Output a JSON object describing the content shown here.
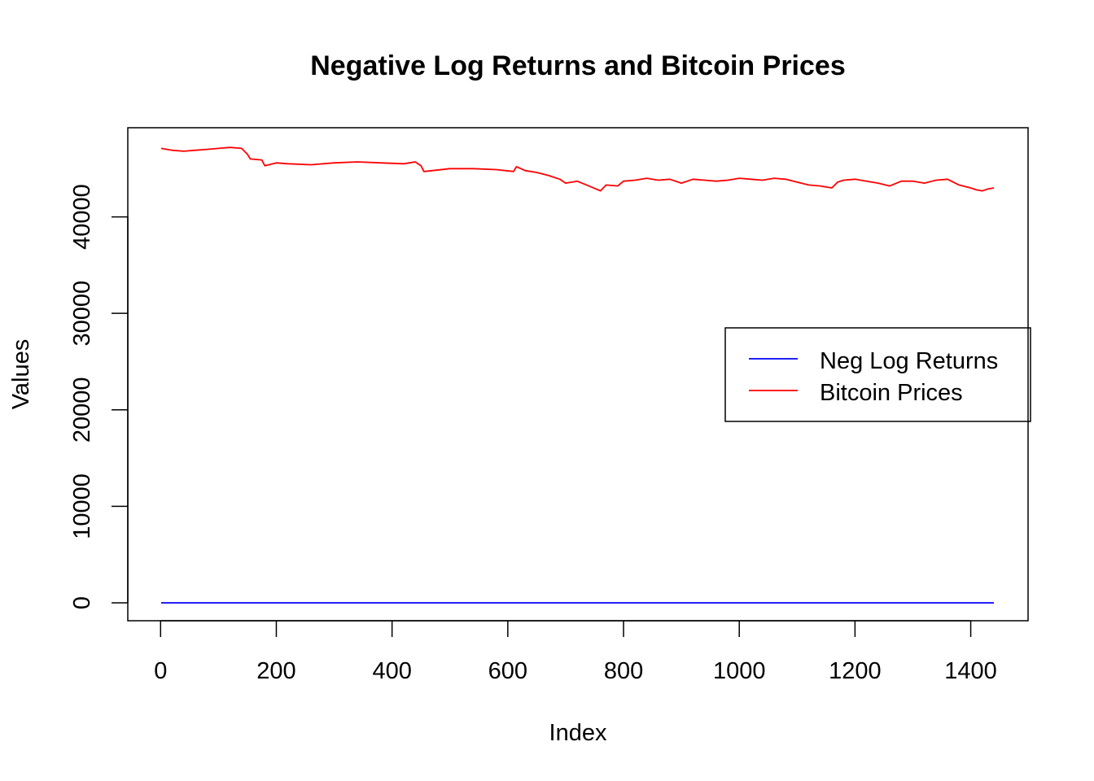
{
  "chart_data": {
    "type": "line",
    "title": "Negative Log Returns and Bitcoin Prices",
    "xlabel": "Index",
    "ylabel": "Values",
    "xlim": [
      1,
      1440
    ],
    "ylim": [
      0,
      47300
    ],
    "x_ticks": [
      0,
      200,
      400,
      600,
      800,
      1000,
      1200,
      1400
    ],
    "y_ticks": [
      0,
      10000,
      20000,
      30000,
      40000
    ],
    "grid": false,
    "legend_position": "right",
    "legend": [
      "Neg Log Returns",
      "Bitcoin Prices"
    ],
    "series": [
      {
        "name": "Neg Log Returns",
        "color": "#0000FF",
        "x": [
          1,
          1440
        ],
        "y": [
          0,
          0
        ]
      },
      {
        "name": "Bitcoin Prices",
        "color": "#FF0000",
        "x": [
          1,
          20,
          40,
          60,
          80,
          100,
          120,
          140,
          150,
          155,
          175,
          180,
          200,
          220,
          260,
          300,
          340,
          380,
          420,
          440,
          450,
          455,
          470,
          500,
          540,
          580,
          610,
          615,
          630,
          650,
          670,
          690,
          700,
          720,
          740,
          760,
          770,
          790,
          800,
          820,
          840,
          860,
          880,
          900,
          920,
          940,
          960,
          980,
          1000,
          1020,
          1040,
          1060,
          1080,
          1100,
          1120,
          1140,
          1160,
          1170,
          1180,
          1200,
          1220,
          1240,
          1260,
          1280,
          1300,
          1320,
          1340,
          1360,
          1380,
          1400,
          1410,
          1420,
          1430,
          1440
        ],
        "y": [
          47100,
          46900,
          46800,
          46900,
          47000,
          47100,
          47200,
          47100,
          46500,
          46000,
          45900,
          45300,
          45600,
          45500,
          45400,
          45600,
          45700,
          45600,
          45500,
          45700,
          45300,
          44700,
          44800,
          45000,
          45000,
          44900,
          44700,
          45200,
          44800,
          44600,
          44300,
          43900,
          43500,
          43700,
          43200,
          42700,
          43300,
          43200,
          43700,
          43800,
          44000,
          43800,
          43900,
          43500,
          43900,
          43800,
          43700,
          43800,
          44000,
          43900,
          43800,
          44000,
          43900,
          43600,
          43300,
          43200,
          43000,
          43600,
          43800,
          43900,
          43700,
          43500,
          43200,
          43700,
          43700,
          43500,
          43800,
          43900,
          43300,
          43000,
          42800,
          42700,
          42900,
          43000
        ]
      }
    ]
  }
}
